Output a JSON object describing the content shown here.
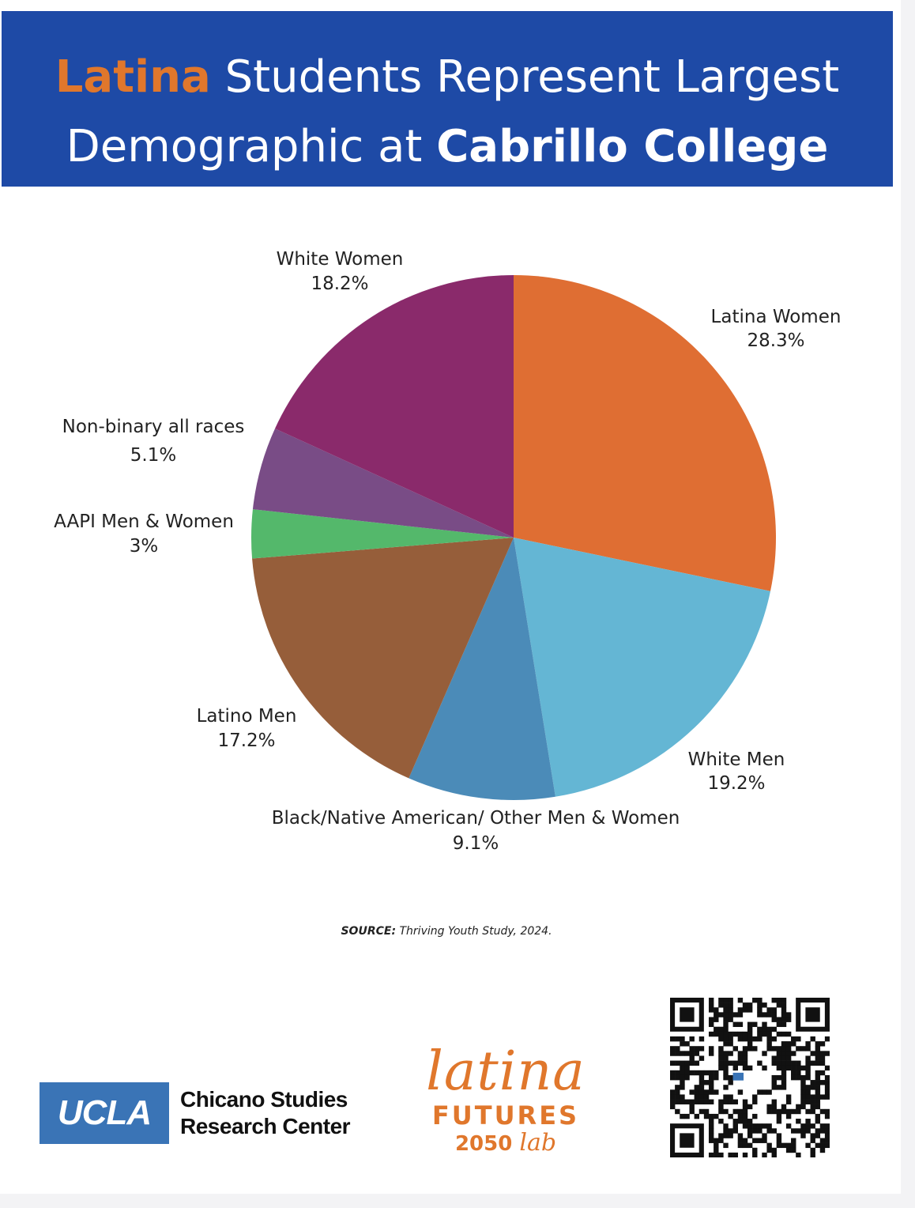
{
  "banner": {
    "highlight": "Latina",
    "line1_rest": " Students Represent Largest",
    "line2_plain": "Demographic at ",
    "line2_bold": "Cabrillo College",
    "background": "#1e4aa6",
    "highlight_color": "#e0772c"
  },
  "chart_data": {
    "type": "pie",
    "title": "Latina Students Represent Largest Demographic at Cabrillo College",
    "start_angle_deg": 0,
    "direction": "clockwise",
    "slices": [
      {
        "label": "Latina Women",
        "value": 28.3,
        "value_text": "28.3%",
        "color": "#df6e33"
      },
      {
        "label": "White Men",
        "value": 19.2,
        "value_text": "19.2%",
        "color": "#64b6d4"
      },
      {
        "label": "Black/Native American/ Other Men & Women",
        "value": 9.1,
        "value_text": "9.1%",
        "color": "#4b8bb8"
      },
      {
        "label": "Latino Men",
        "value": 17.2,
        "value_text": "17.2%",
        "color": "#965e3a"
      },
      {
        "label": "AAPI Men & Women",
        "value": 3.0,
        "value_text": "3%",
        "color": "#54b86b"
      },
      {
        "label": "Non-binary all races",
        "value": 5.1,
        "value_text": "5.1%",
        "color": "#794c86"
      },
      {
        "label": "White Women",
        "value": 18.2,
        "value_text": "18.2%",
        "color": "#8a2a6b"
      }
    ]
  },
  "source": {
    "label": "SOURCE:",
    "text": " Thriving Youth Study, 2024."
  },
  "logos": {
    "ucla": "UCLA",
    "csrc_line1": "Chicano Studies",
    "csrc_line2": "Research Center",
    "latina_word": "latina",
    "futures": "FUTURES",
    "year": "2050",
    "lab": "lab",
    "qr_icon": "qr-code-icon"
  }
}
